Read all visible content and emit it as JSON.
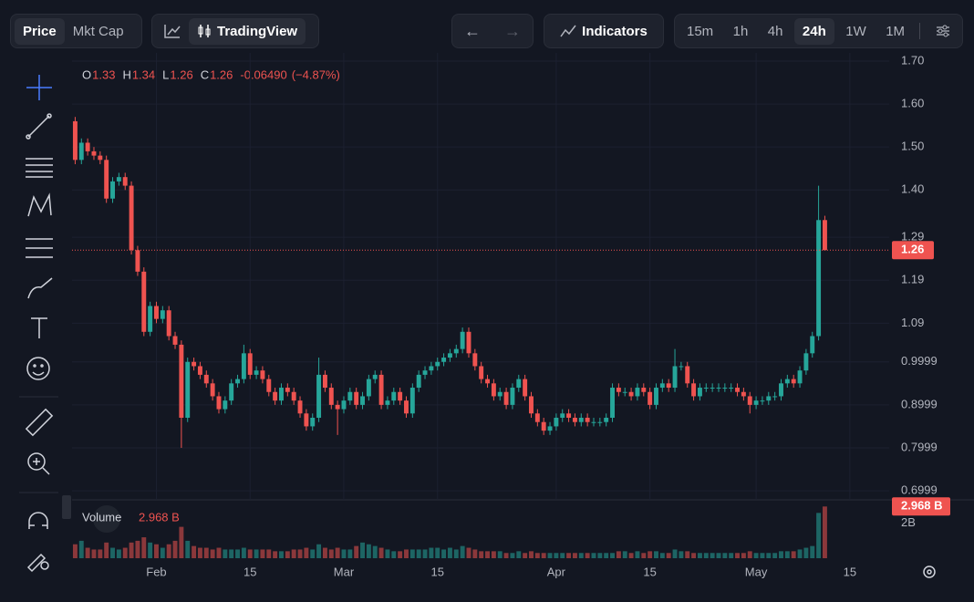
{
  "toolbar": {
    "price_tabs": [
      "Price",
      "Mkt Cap"
    ],
    "chart_tab": "TradingView",
    "indicators": "Indicators",
    "intervals": [
      "15m",
      "1h",
      "4h",
      "24h",
      "1W",
      "1M"
    ]
  },
  "legend": {
    "labels": [
      "O",
      "H",
      "L",
      "C"
    ],
    "change": "-0.06490",
    "change_pct": "(−4.87%)",
    "volume": "Volume"
  },
  "chart_data": {
    "type": "candlestick",
    "grid": true,
    "up_color": "#26a69a",
    "down_color": "#ef5350",
    "xlim": [
      -0.5,
      130.3
    ],
    "xticks": [
      {
        "value": 13,
        "label": "Feb"
      },
      {
        "value": 28,
        "label": "15"
      },
      {
        "value": 43,
        "label": "Mar"
      },
      {
        "value": 58,
        "label": "15"
      },
      {
        "value": 77,
        "label": "Apr"
      },
      {
        "value": 92,
        "label": "15"
      },
      {
        "value": 109,
        "label": "May"
      },
      {
        "value": 124,
        "label": "15"
      }
    ],
    "ylim": [
      0.679,
      1.719
    ],
    "yticks": [
      0.6999,
      0.7999,
      0.8999,
      0.9999,
      1.09,
      1.19,
      1.29,
      {
        "value": 1.4,
        "label": "1.40"
      },
      {
        "value": 1.5,
        "label": "1.50"
      },
      {
        "value": 1.6,
        "label": "1.60"
      },
      {
        "value": 1.7,
        "label": "1.70"
      }
    ],
    "open": [
      1.56,
      1.47,
      1.51,
      1.49,
      1.48,
      1.47,
      1.38,
      1.42,
      1.43,
      1.41,
      1.26,
      1.21,
      1.07,
      1.13,
      1.1,
      1.12,
      1.06,
      1.04,
      0.87,
      1.0,
      0.99,
      0.97,
      0.95,
      0.92,
      0.89,
      0.91,
      0.95,
      0.96,
      1.02,
      0.97,
      0.98,
      0.96,
      0.93,
      0.91,
      0.94,
      0.93,
      0.91,
      0.88,
      0.85,
      0.87,
      0.97,
      0.94,
      0.9,
      0.89,
      0.91,
      0.93,
      0.9,
      0.92,
      0.96,
      0.97,
      0.9,
      0.91,
      0.93,
      0.91,
      0.88,
      0.94,
      0.97,
      0.98,
      0.99,
      1.0,
      1.01,
      1.02,
      1.03,
      1.07,
      1.02,
      0.99,
      0.96,
      0.95,
      0.92,
      0.93,
      0.9,
      0.94,
      0.96,
      0.92,
      0.88,
      0.86,
      0.84,
      0.85,
      0.87,
      0.88,
      0.87,
      0.86,
      0.87,
      0.86,
      0.86,
      0.86,
      0.87,
      0.94,
      0.93,
      0.93,
      0.92,
      0.94,
      0.93,
      0.9,
      0.94,
      0.95,
      0.94,
      0.99,
      0.99,
      0.95,
      0.92,
      0.94,
      0.94,
      0.94,
      0.94,
      0.94,
      0.94,
      0.93,
      0.92,
      0.9,
      0.91,
      0.91,
      0.92,
      0.92,
      0.95,
      0.96,
      0.95,
      0.98,
      1.02,
      1.06,
      1.33
    ],
    "high": [
      1.57,
      1.52,
      1.52,
      1.5,
      1.49,
      1.48,
      1.43,
      1.44,
      1.44,
      1.42,
      1.27,
      1.22,
      1.14,
      1.14,
      1.13,
      1.13,
      1.07,
      1.05,
      1.01,
      1.01,
      1.0,
      0.98,
      0.96,
      0.93,
      0.92,
      0.96,
      0.97,
      1.04,
      1.03,
      0.99,
      0.99,
      0.97,
      0.94,
      0.95,
      0.95,
      0.94,
      0.92,
      0.89,
      0.88,
      1.01,
      0.98,
      0.95,
      0.91,
      0.92,
      0.94,
      0.94,
      0.93,
      0.97,
      0.98,
      0.98,
      0.92,
      0.94,
      0.94,
      0.92,
      0.95,
      0.98,
      0.99,
      1.0,
      1.01,
      1.02,
      1.03,
      1.04,
      1.08,
      1.08,
      1.03,
      1.0,
      0.97,
      0.96,
      0.94,
      0.94,
      0.95,
      0.97,
      0.97,
      0.93,
      0.89,
      0.87,
      0.86,
      0.88,
      0.89,
      0.89,
      0.88,
      0.88,
      0.88,
      0.87,
      0.87,
      0.88,
      0.95,
      0.95,
      0.94,
      0.94,
      0.95,
      0.95,
      0.94,
      0.95,
      0.96,
      0.96,
      1.03,
      1.0,
      1.0,
      0.96,
      0.95,
      0.95,
      0.95,
      0.95,
      0.95,
      0.95,
      0.95,
      0.94,
      0.93,
      0.92,
      0.92,
      0.93,
      0.93,
      0.96,
      0.97,
      0.97,
      0.99,
      1.03,
      1.07,
      1.41,
      1.34
    ],
    "low": [
      1.46,
      1.46,
      1.48,
      1.47,
      1.46,
      1.37,
      1.37,
      1.41,
      1.4,
      1.25,
      1.2,
      1.06,
      1.06,
      1.09,
      1.09,
      1.05,
      1.03,
      0.8,
      0.86,
      0.98,
      0.96,
      0.94,
      0.91,
      0.88,
      0.88,
      0.9,
      0.94,
      0.95,
      0.96,
      0.96,
      0.95,
      0.92,
      0.9,
      0.9,
      0.92,
      0.9,
      0.87,
      0.84,
      0.84,
      0.86,
      0.93,
      0.89,
      0.83,
      0.88,
      0.9,
      0.89,
      0.89,
      0.91,
      0.95,
      0.89,
      0.89,
      0.9,
      0.9,
      0.87,
      0.87,
      0.93,
      0.96,
      0.97,
      0.98,
      0.99,
      1.0,
      1.01,
      1.02,
      1.01,
      0.98,
      0.95,
      0.94,
      0.91,
      0.91,
      0.89,
      0.89,
      0.93,
      0.91,
      0.87,
      0.85,
      0.83,
      0.83,
      0.84,
      0.86,
      0.86,
      0.85,
      0.85,
      0.85,
      0.85,
      0.85,
      0.85,
      0.86,
      0.92,
      0.92,
      0.91,
      0.91,
      0.92,
      0.89,
      0.89,
      0.93,
      0.93,
      0.93,
      0.98,
      0.94,
      0.91,
      0.91,
      0.93,
      0.93,
      0.93,
      0.93,
      0.93,
      0.92,
      0.91,
      0.88,
      0.89,
      0.9,
      0.9,
      0.91,
      0.91,
      0.94,
      0.94,
      0.94,
      0.97,
      1.01,
      1.05,
      1.26
    ],
    "close": [
      1.47,
      1.51,
      1.49,
      1.48,
      1.47,
      1.38,
      1.42,
      1.43,
      1.41,
      1.26,
      1.21,
      1.07,
      1.13,
      1.1,
      1.12,
      1.06,
      1.04,
      0.87,
      1.0,
      0.99,
      0.97,
      0.95,
      0.92,
      0.89,
      0.91,
      0.95,
      0.96,
      1.02,
      0.97,
      0.98,
      0.96,
      0.93,
      0.91,
      0.94,
      0.93,
      0.91,
      0.88,
      0.85,
      0.87,
      0.97,
      0.94,
      0.9,
      0.89,
      0.91,
      0.93,
      0.9,
      0.92,
      0.96,
      0.97,
      0.9,
      0.91,
      0.93,
      0.91,
      0.88,
      0.94,
      0.97,
      0.98,
      0.99,
      1.0,
      1.01,
      1.02,
      1.03,
      1.07,
      1.02,
      0.99,
      0.96,
      0.95,
      0.92,
      0.93,
      0.9,
      0.94,
      0.96,
      0.92,
      0.88,
      0.86,
      0.84,
      0.85,
      0.87,
      0.88,
      0.87,
      0.86,
      0.87,
      0.86,
      0.86,
      0.86,
      0.87,
      0.94,
      0.93,
      0.93,
      0.92,
      0.94,
      0.93,
      0.9,
      0.94,
      0.95,
      0.94,
      0.99,
      0.99,
      0.95,
      0.92,
      0.94,
      0.94,
      0.94,
      0.94,
      0.94,
      0.94,
      0.93,
      0.92,
      0.9,
      0.91,
      0.91,
      0.92,
      0.92,
      0.95,
      0.96,
      0.95,
      0.98,
      1.02,
      1.06,
      1.33,
      1.26
    ],
    "volume": [
      0.8,
      1.0,
      0.6,
      0.5,
      0.5,
      0.9,
      0.6,
      0.5,
      0.6,
      0.9,
      1.0,
      1.2,
      0.9,
      0.8,
      0.6,
      0.8,
      1.0,
      1.8,
      1.0,
      0.7,
      0.6,
      0.6,
      0.5,
      0.6,
      0.5,
      0.5,
      0.5,
      0.6,
      0.5,
      0.5,
      0.5,
      0.5,
      0.4,
      0.4,
      0.4,
      0.5,
      0.5,
      0.6,
      0.5,
      0.8,
      0.6,
      0.5,
      0.6,
      0.5,
      0.5,
      0.7,
      0.9,
      0.8,
      0.7,
      0.6,
      0.5,
      0.4,
      0.4,
      0.5,
      0.5,
      0.5,
      0.5,
      0.6,
      0.6,
      0.5,
      0.6,
      0.5,
      0.7,
      0.6,
      0.5,
      0.4,
      0.4,
      0.4,
      0.4,
      0.3,
      0.3,
      0.4,
      0.3,
      0.4,
      0.3,
      0.3,
      0.3,
      0.3,
      0.3,
      0.3,
      0.3,
      0.3,
      0.3,
      0.3,
      0.3,
      0.3,
      0.3,
      0.4,
      0.4,
      0.3,
      0.4,
      0.3,
      0.4,
      0.4,
      0.3,
      0.3,
      0.5,
      0.4,
      0.4,
      0.3,
      0.3,
      0.3,
      0.3,
      0.3,
      0.3,
      0.3,
      0.3,
      0.3,
      0.4,
      0.3,
      0.3,
      0.3,
      0.3,
      0.4,
      0.4,
      0.4,
      0.5,
      0.6,
      0.7,
      2.6,
      2.968
    ],
    "volume_label_text": "2.968 B",
    "volume_ylim": [
      0,
      3.35
    ],
    "volume_yticks": [
      {
        "value": 2,
        "label": "2B"
      }
    ]
  }
}
